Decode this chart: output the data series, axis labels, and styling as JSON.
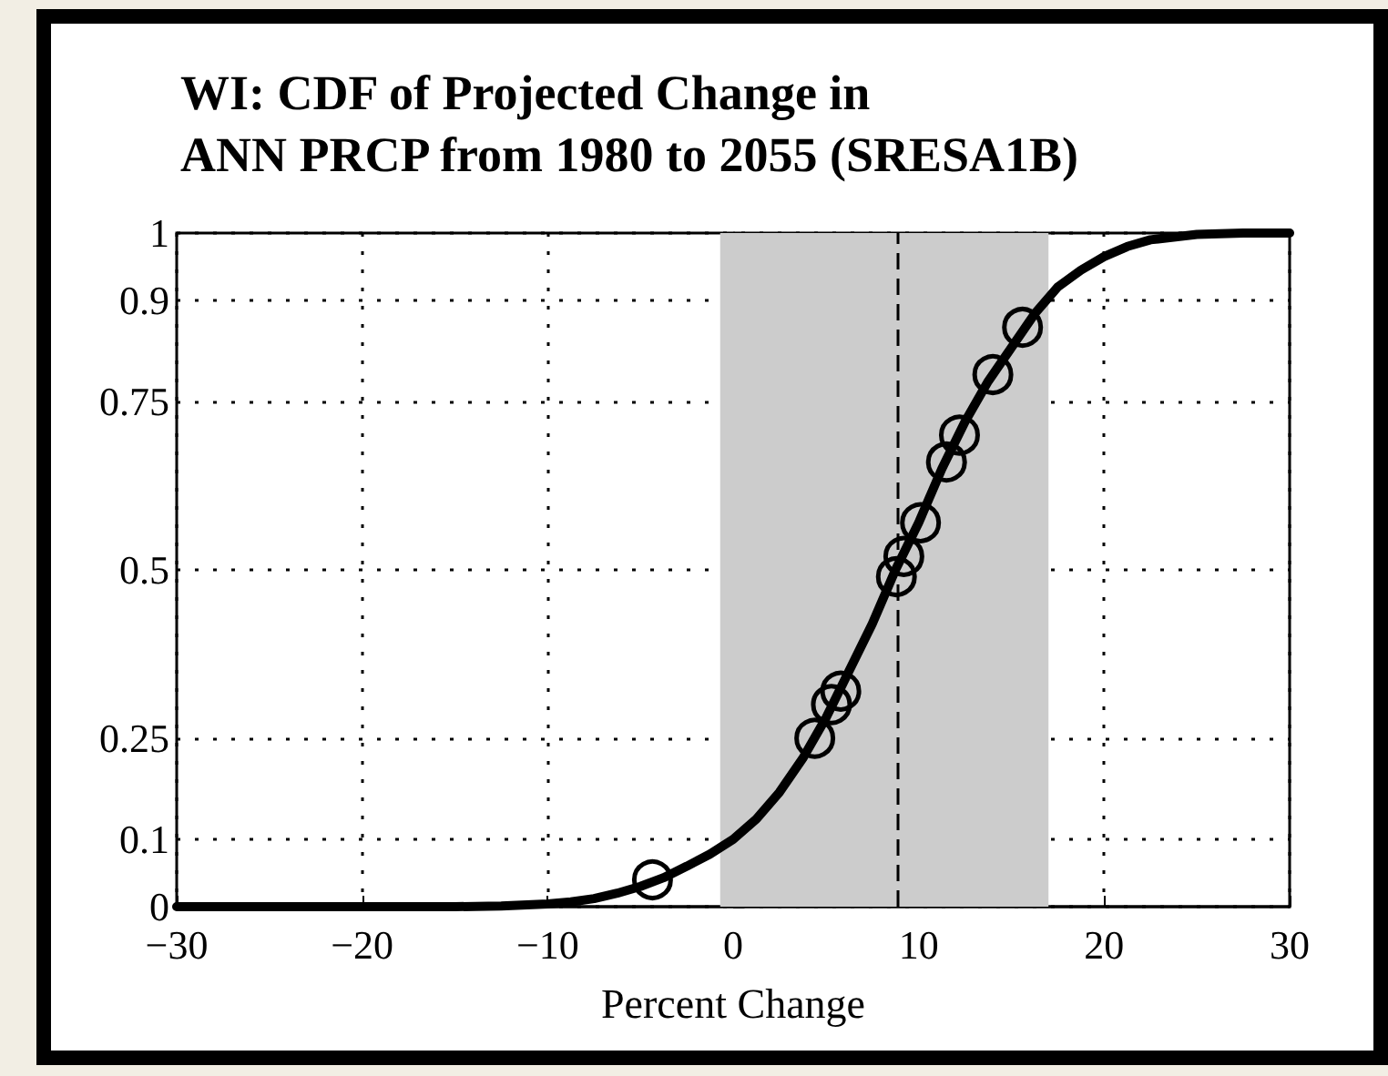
{
  "chart_data": {
    "type": "line",
    "title": "WI: CDF of Projected Change in\nANN PRCP from 1980 to 2055 (SRESA1B)",
    "xlabel": "Percent Change",
    "xlim": [
      -30,
      30
    ],
    "xticks": [
      {
        "value": -30,
        "label": "−30"
      },
      {
        "value": -20,
        "label": "−20"
      },
      {
        "value": -10,
        "label": "−10"
      },
      0,
      10,
      20,
      30
    ],
    "ylim": [
      0,
      1
    ],
    "yticks": [
      0,
      0.1,
      0.25,
      0.5,
      0.75,
      0.9,
      1
    ],
    "grid": true,
    "series": [
      {
        "color": "#000000",
        "marker": "none",
        "line_style": "solid",
        "x": [
          -30,
          -20,
          -15,
          -12.5,
          -10,
          -8.75,
          -7.5,
          -6.25,
          -5,
          -3.75,
          -2.5,
          -1.25,
          0,
          1.25,
          2.5,
          3.75,
          5,
          6.25,
          7.5,
          8.75,
          10,
          11.25,
          12.5,
          13.75,
          15,
          16.25,
          17.5,
          18.75,
          20,
          21.25,
          22.5,
          25,
          27.5,
          30
        ],
        "values": [
          0,
          0,
          0,
          0.001,
          0.004,
          0.007,
          0.012,
          0.02,
          0.03,
          0.043,
          0.06,
          0.078,
          0.1,
          0.13,
          0.17,
          0.22,
          0.28,
          0.35,
          0.42,
          0.5,
          0.57,
          0.65,
          0.72,
          0.78,
          0.83,
          0.88,
          0.92,
          0.945,
          0.965,
          0.98,
          0.99,
          0.998,
          1,
          1
        ]
      },
      {
        "type": "scatter",
        "color": "#000000",
        "marker": "circle",
        "x": [
          -4.35,
          4.4,
          5.3,
          5.8,
          8.8,
          9.2,
          10.1,
          11.5,
          12.2,
          14.0,
          15.6
        ],
        "values": [
          0.04,
          0.25,
          0.3,
          0.32,
          0.49,
          0.52,
          0.57,
          0.66,
          0.7,
          0.79,
          0.86
        ]
      }
    ],
    "bands": [
      {
        "axis": "x",
        "from": -0.7,
        "to": 17,
        "color": "#cccccc"
      }
    ],
    "ref_lines": [
      {
        "axis": "x",
        "value": 8.9,
        "color": "#000000",
        "line_style": "dashed"
      }
    ]
  }
}
